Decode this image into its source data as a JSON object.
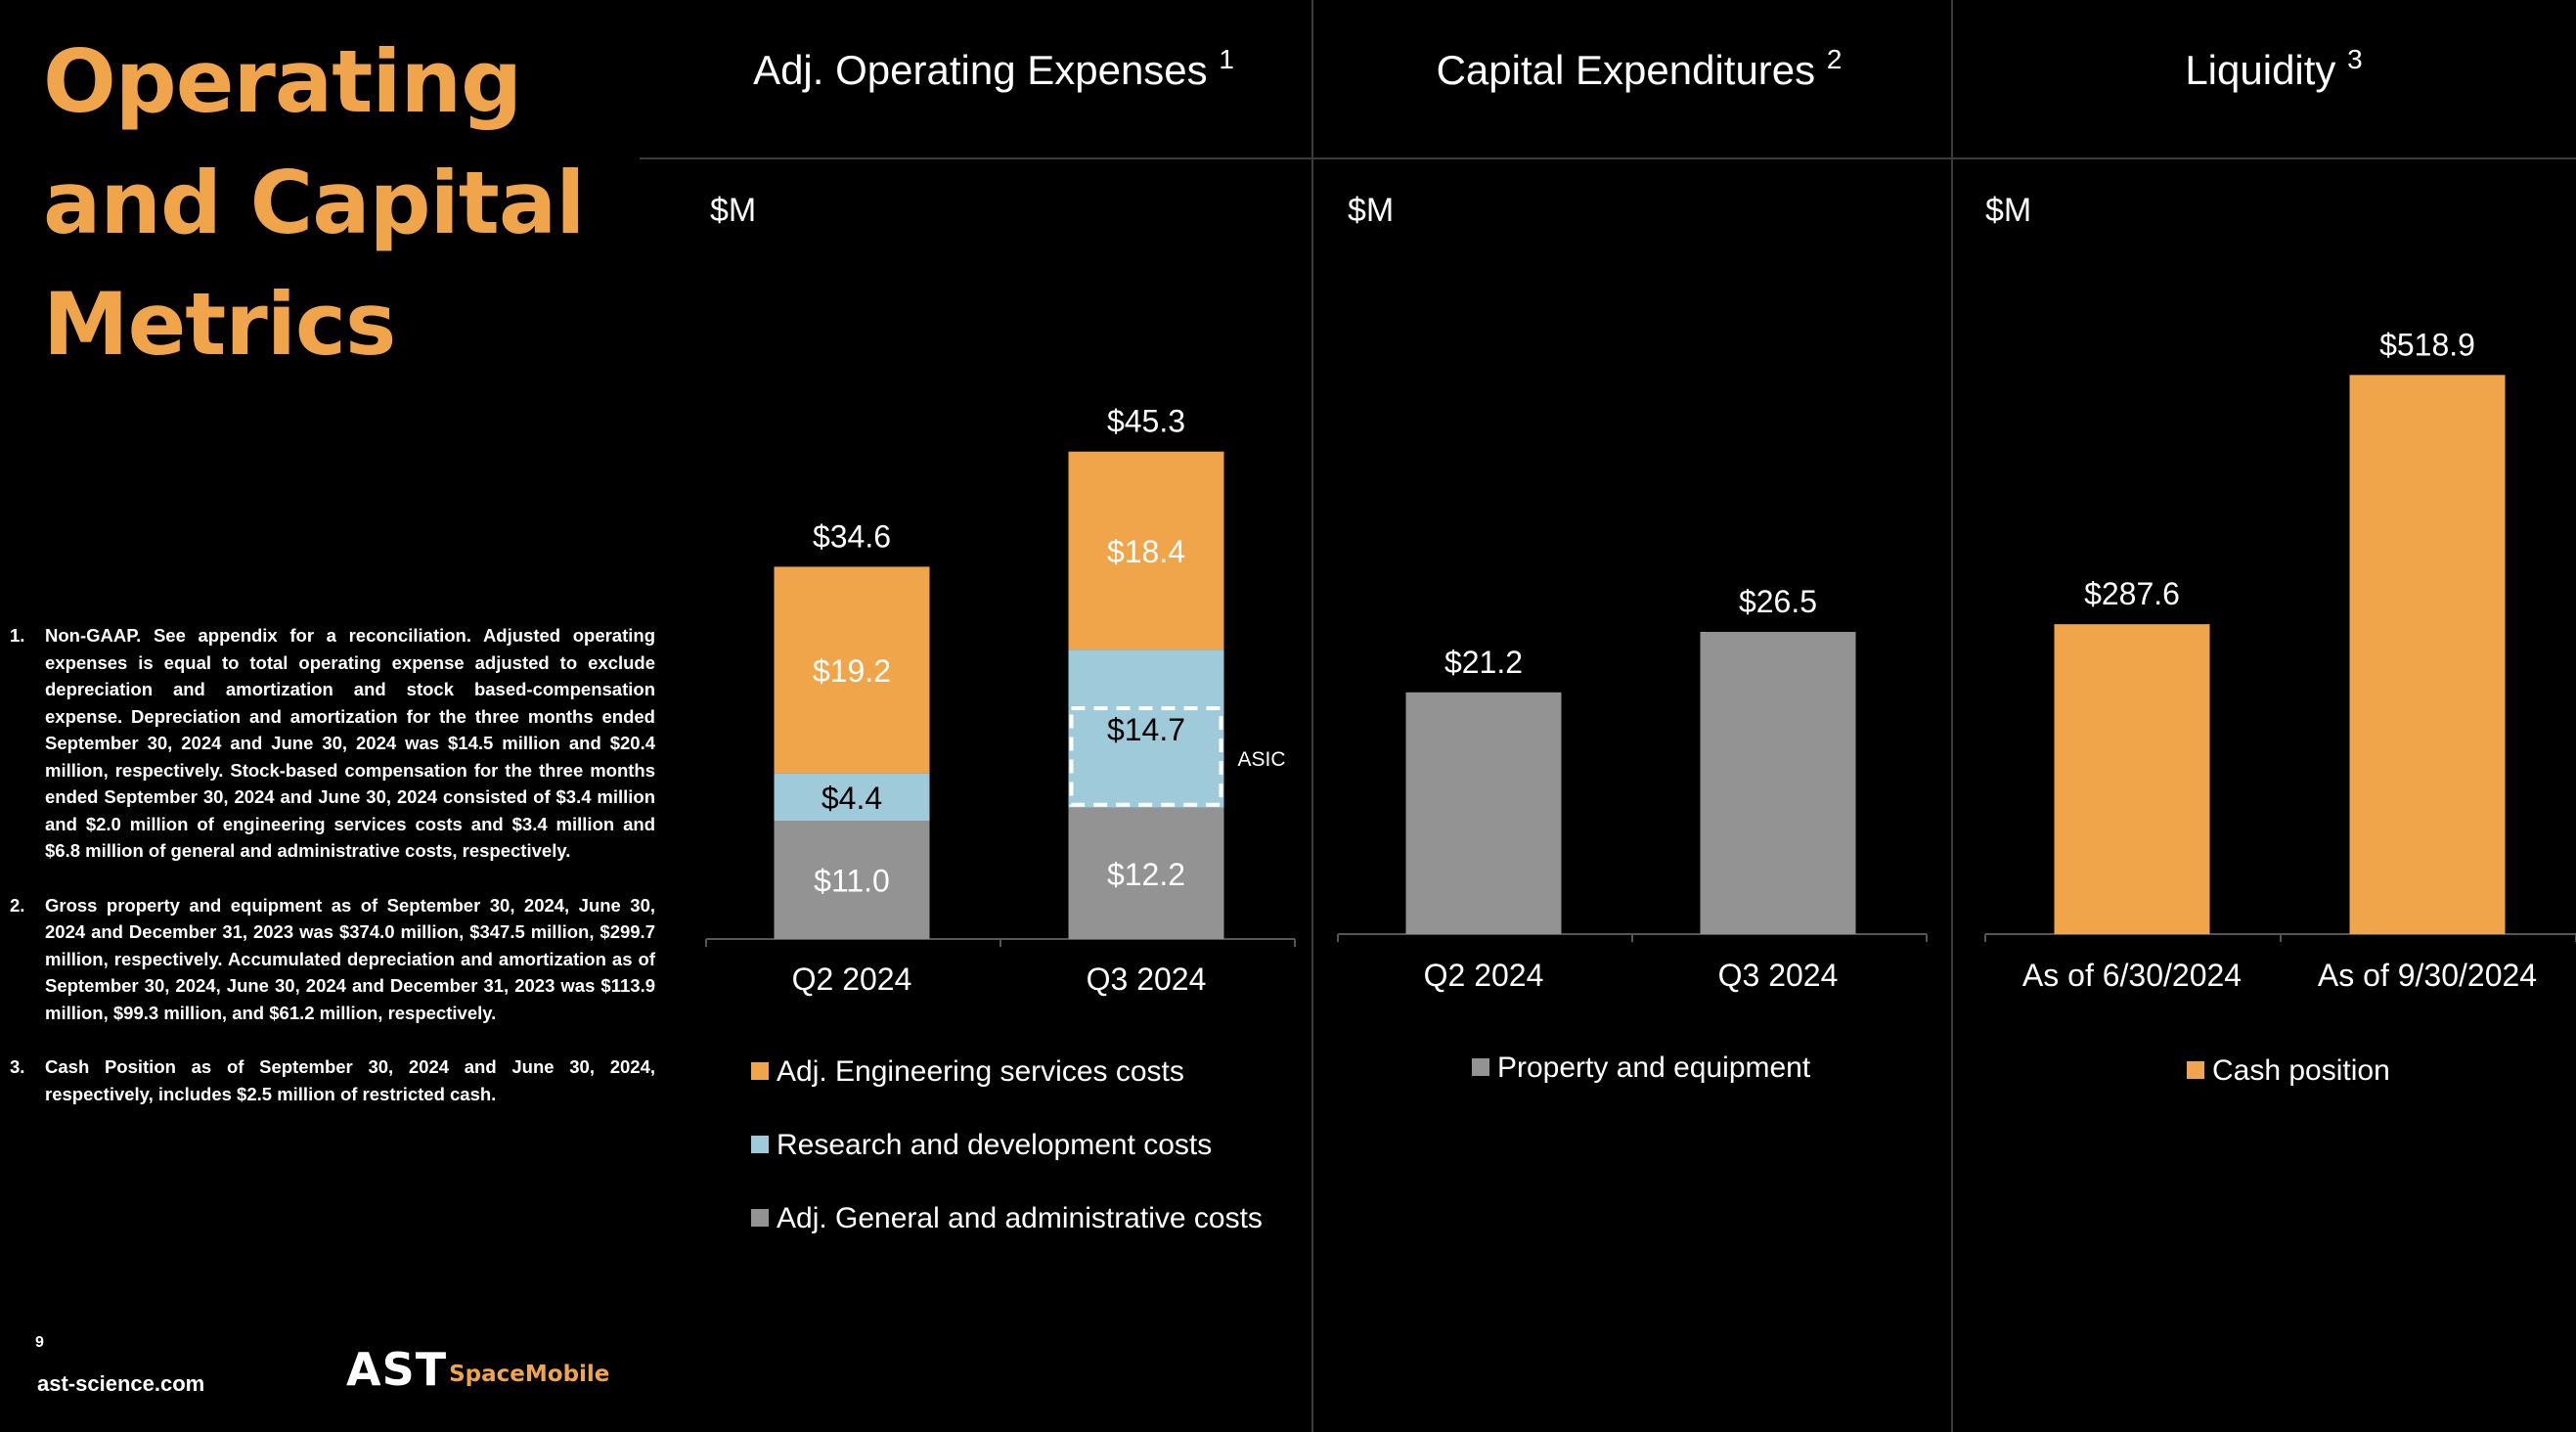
{
  "slide": {
    "title": "Operating and Capital Metrics",
    "page_number": "9",
    "website": "ast-science.com",
    "logo": {
      "primary": "AST",
      "secondary": "SpaceMobile"
    }
  },
  "footnotes": [
    {
      "num": "1.",
      "text": "Non-GAAP. See appendix for a reconciliation. Adjusted operating expenses is equal to total operating expense adjusted to exclude depreciation and amortization and stock based-compensation expense. Depreciation and amortization for the three months ended September 30, 2024 and June 30, 2024 was $14.5 million and $20.4 million, respectively. Stock-based compensation for the three months ended September 30, 2024 and June 30, 2024 consisted of $3.4 million and $2.0 million of engineering services costs and $3.4 million and $6.8 million of general and administrative costs, respectively."
    },
    {
      "num": "2.",
      "text": "Gross property and equipment as of September 30, 2024, June 30, 2024 and December 31, 2023 was $374.0 million, $347.5 million, $299.7 million, respectively. Accumulated depreciation and amortization as of September 30, 2024, June 30, 2024 and December 31, 2023 was $113.9 million, $99.3 million, and $61.2 million, respectively."
    },
    {
      "num": "3.",
      "text": "Cash Position as of September 30, 2024 and June 30, 2024, respectively, includes $2.5 million of restricted cash."
    }
  ],
  "colors": {
    "orange": "#F0A54A",
    "light_blue": "#9ECAD9",
    "gray": "#939393",
    "divider": "#3A3A3A",
    "axis": "#555555"
  },
  "chart_data": [
    {
      "type": "bar",
      "stacked": true,
      "title": "Adj. Operating Expenses",
      "title_sup": "1",
      "unit_label": "$M",
      "categories": [
        "Q2 2024",
        "Q3 2024"
      ],
      "ylim": [
        0,
        50
      ],
      "series": [
        {
          "name": "Adj. General and administrative costs",
          "color": "#939393",
          "values": [
            11.0,
            12.2
          ],
          "labels": [
            "$11.0",
            "$12.2"
          ],
          "label_color": "#ffffff"
        },
        {
          "name": "Research and development costs",
          "color": "#9ECAD9",
          "values": [
            4.4,
            14.7
          ],
          "labels": [
            "$4.4",
            "$14.7"
          ],
          "label_color": "#000000"
        },
        {
          "name": "Adj. Engineering services costs",
          "color": "#F0A54A",
          "values": [
            19.2,
            18.4
          ],
          "labels": [
            "$19.2",
            "$18.4"
          ],
          "label_color": "#ffffff"
        }
      ],
      "totals": [
        "$34.6",
        "$45.3"
      ],
      "legend_order": [
        "Adj. Engineering services costs",
        "Research and development costs",
        "Adj. General and administrative costs"
      ],
      "annotation": {
        "text": "ASIC",
        "category": "Q3 2024",
        "series": "Research and development costs",
        "style": "dashed-box"
      }
    },
    {
      "type": "bar",
      "title": "Capital Expenditures",
      "title_sup": "2",
      "unit_label": "$M",
      "categories": [
        "Q2 2024",
        "Q3 2024"
      ],
      "ylim": [
        0,
        50
      ],
      "series": [
        {
          "name": "Property and equipment",
          "color": "#939393",
          "values": [
            21.2,
            26.5
          ],
          "labels": [
            "$21.2",
            "$26.5"
          ]
        }
      ],
      "legend_order": [
        "Property and equipment"
      ]
    },
    {
      "type": "bar",
      "title": "Liquidity",
      "title_sup": "3",
      "unit_label": "$M",
      "categories": [
        "As of 6/30/2024",
        "As of 9/30/2024"
      ],
      "ylim": [
        0,
        600
      ],
      "series": [
        {
          "name": "Cash position",
          "color": "#F0A54A",
          "values": [
            287.6,
            518.9
          ],
          "labels": [
            "$287.6",
            "$518.9"
          ]
        }
      ],
      "legend_order": [
        "Cash position"
      ]
    }
  ]
}
